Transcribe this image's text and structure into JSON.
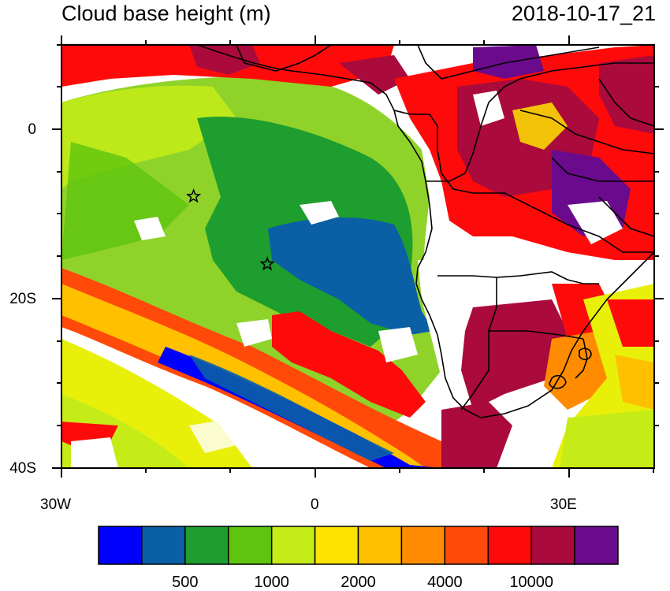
{
  "title": "Cloud base height (m)",
  "timestamp": "2018-10-17_21",
  "axes": {
    "x_ticks": [
      "30W",
      "0",
      "30E"
    ],
    "y_ticks": [
      "0",
      "20S",
      "40S"
    ],
    "lon_range": [
      -30,
      40
    ],
    "lat_range": [
      -40,
      10
    ]
  },
  "markers": [
    {
      "name": "station-star",
      "lon": -14.4,
      "lat": -7.9
    },
    {
      "name": "station-star",
      "lon": -5.7,
      "lat": -15.9
    }
  ],
  "colorbar": {
    "colors": [
      "#0000ff",
      "#0b5fa5",
      "#1e9e2e",
      "#5ec40e",
      "#c6ec18",
      "#ffe300",
      "#ffc000",
      "#ff8c00",
      "#ff4a0a",
      "#ff0a0a",
      "#aa0a3c",
      "#6a0a8c"
    ],
    "labels": [
      {
        "text": "500",
        "boundary": 2
      },
      {
        "text": "1000",
        "boundary": 4
      },
      {
        "text": "2000",
        "boundary": 6
      },
      {
        "text": "4000",
        "boundary": 8
      },
      {
        "text": "10000",
        "boundary": 10
      }
    ]
  }
}
